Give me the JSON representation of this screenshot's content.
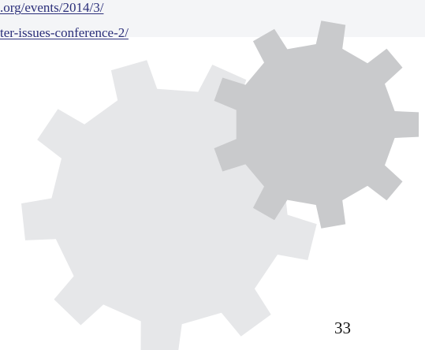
{
  "page": {
    "background": "#ffffff",
    "band_color": "#f4f5f7"
  },
  "link": {
    "line1": ".org/events/2014/3/",
    "line2": "ter-issues-conference-2/",
    "color": "#2b2f7a"
  },
  "decoration": {
    "large_gear_icon": "gear-icon",
    "large_gear_color": "#e6e7e9",
    "small_gear_icon": "gear-icon",
    "small_gear_color": "#c9cacc"
  },
  "footer": {
    "page_number": "33"
  }
}
